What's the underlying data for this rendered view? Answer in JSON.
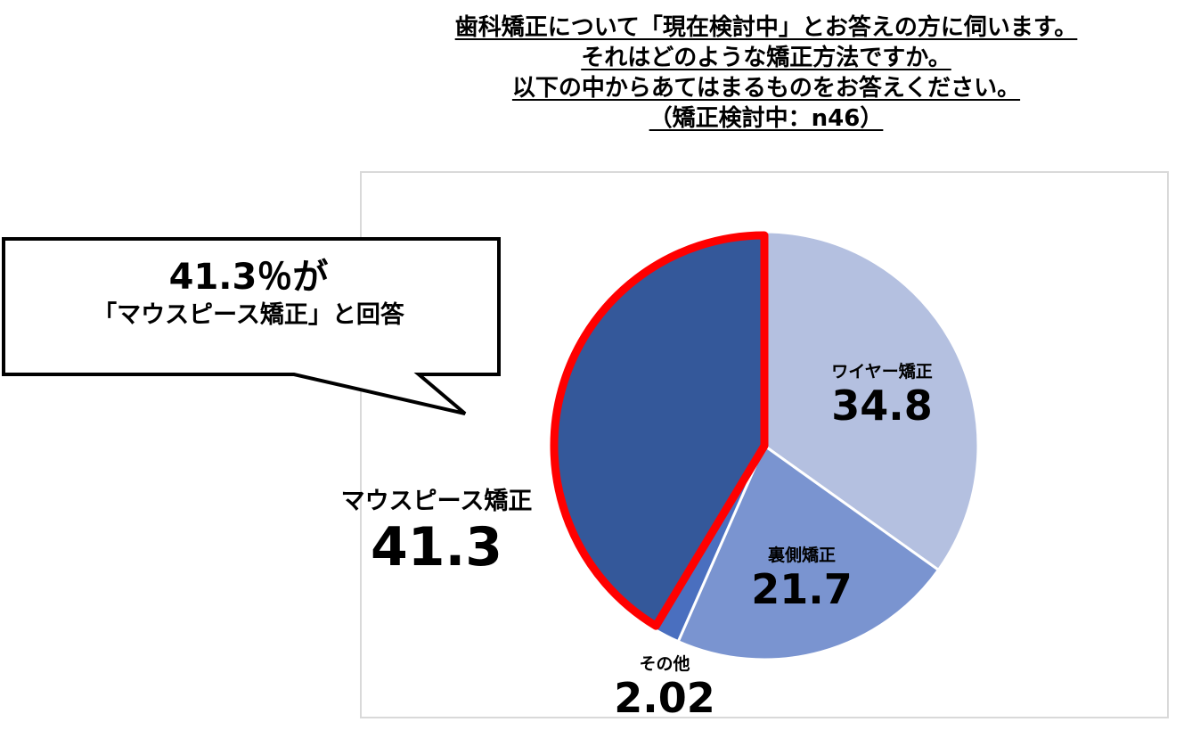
{
  "title_lines": [
    "歯科矯正について「現在検討中」とお答えの方に伺います。",
    "それはどのような矯正方法ですか。",
    "以下の中からあてはまるものをお答えください。",
    "（矯正検討中：n46）"
  ],
  "callout": {
    "line1": "41.3％が",
    "line2": "「マウスピース矯正」と回答"
  },
  "colors": {
    "wire": "#b4c0e0",
    "lingual": "#7a94d0",
    "other": "#4a6fbf",
    "mouthpiece": "#34589a",
    "highlight_border": "#ff0000",
    "frame_border": "#d9d9d9"
  },
  "chart_data": {
    "type": "pie",
    "title": "",
    "slices": [
      {
        "label": "ワイヤー矯正",
        "value": 34.8,
        "value_text": "34.8"
      },
      {
        "label": "裏側矯正",
        "value": 21.7,
        "value_text": "21.7"
      },
      {
        "label": "その他",
        "value": 2.02,
        "value_text": "2.02"
      },
      {
        "label": "マウスピース矯正",
        "value": 41.3,
        "value_text": "41.3",
        "highlighted": true
      }
    ],
    "start": "12 o'clock",
    "direction": "clockwise",
    "legend": "none",
    "data_labels": "category name and value"
  }
}
